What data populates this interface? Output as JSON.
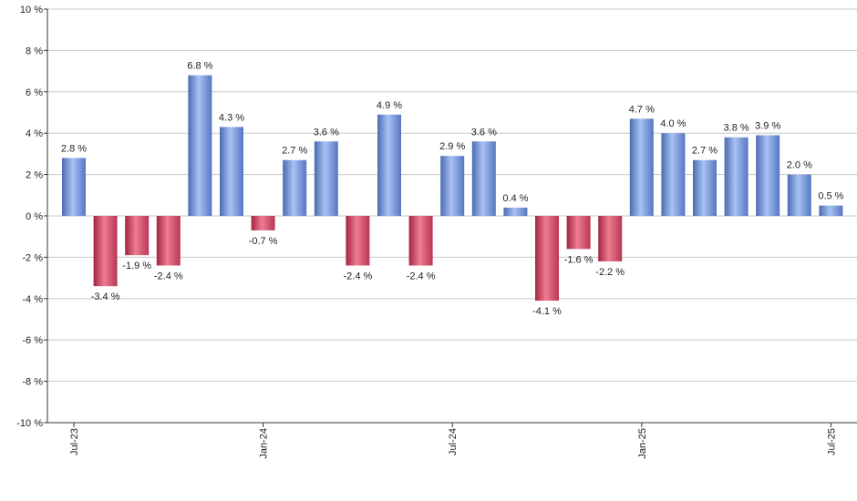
{
  "chart_data": {
    "type": "bar",
    "unit": " %",
    "ylim": [
      -10,
      10
    ],
    "yticks": [
      10,
      8,
      6,
      4,
      2,
      0,
      -2,
      -4,
      -6,
      -8,
      -10
    ],
    "ytick_labels": [
      "10 %",
      "8 %",
      "6 %",
      "4 %",
      "2 %",
      "0 %",
      "-2 %",
      "-4 %",
      "-6 %",
      "-8 %",
      "-10 %"
    ],
    "grid": true,
    "categories": [
      "Jul-23",
      "Aug-23",
      "Sep-23",
      "Oct-23",
      "Nov-23",
      "Dec-23",
      "Jan-24",
      "Feb-24",
      "Mar-24",
      "Apr-24",
      "May-24",
      "Jun-24",
      "Jul-24",
      "Aug-24",
      "Sep-24",
      "Oct-24",
      "Nov-24",
      "Dec-24",
      "Jan-25",
      "Feb-25",
      "Mar-25",
      "Apr-25",
      "May-25",
      "Jun-25",
      "Jul-25"
    ],
    "values": [
      2.8,
      -3.4,
      -1.9,
      -2.4,
      6.8,
      4.3,
      -0.7,
      2.7,
      3.6,
      -2.4,
      4.9,
      -2.4,
      2.9,
      3.6,
      0.4,
      -4.1,
      -1.6,
      -2.2,
      4.7,
      4.0,
      2.7,
      3.8,
      3.9,
      2.0,
      0.5
    ],
    "value_labels": [
      "2.8 %",
      "-3.4 %",
      "-1.9 %",
      "-2.4 %",
      "6.8 %",
      "4.3 %",
      "-0.7 %",
      "2.7 %",
      "3.6 %",
      "-2.4 %",
      "4.9 %",
      "-2.4 %",
      "2.9 %",
      "3.6 %",
      "0.4 %",
      "-4.1 %",
      "-1.6 %",
      "-2.2 %",
      "4.7 %",
      "4.0 %",
      "2.7 %",
      "3.8 %",
      "3.9 %",
      "2.0 %",
      "0.5 %"
    ],
    "xtick_labels": [
      "Jul-23",
      "Jan-24",
      "Jul-24",
      "Jan-25",
      "Jul-25"
    ],
    "xtick_categories": [
      "Jul-23",
      "Jan-24",
      "Jul-24",
      "Jan-25",
      "Jul-25"
    ],
    "colors": {
      "positive": "#7799dd",
      "negative": "#cc4466",
      "grid": "#c8c8c8",
      "axis": "#333333"
    }
  }
}
